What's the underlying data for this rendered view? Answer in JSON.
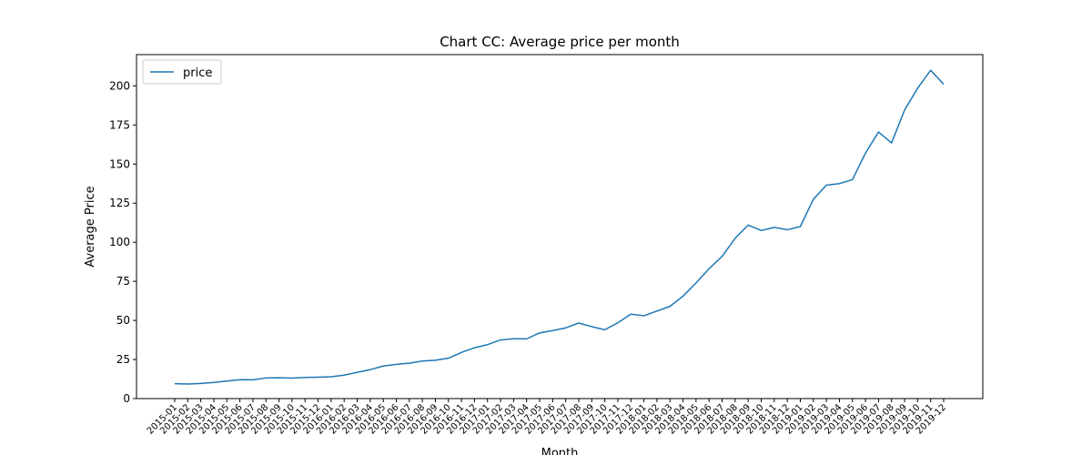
{
  "chart_data": {
    "type": "line",
    "title": "Chart CC: Average price per month",
    "xlabel": "Month",
    "ylabel": "Average Price",
    "ylim": [
      0,
      220
    ],
    "yticks": [
      0,
      25,
      50,
      75,
      100,
      125,
      150,
      175,
      200
    ],
    "grid": false,
    "legend_position": "top-left",
    "categories": [
      "2015-01",
      "2015-02",
      "2015-03",
      "2015-04",
      "2015-05",
      "2015-06",
      "2015-07",
      "2015-08",
      "2015-09",
      "2015-10",
      "2015-11",
      "2015-12",
      "2016-01",
      "2016-02",
      "2016-03",
      "2016-04",
      "2016-05",
      "2016-06",
      "2016-07",
      "2016-08",
      "2016-09",
      "2016-10",
      "2016-11",
      "2016-12",
      "2017-01",
      "2017-02",
      "2017-03",
      "2017-04",
      "2017-05",
      "2017-06",
      "2017-07",
      "2017-08",
      "2017-09",
      "2017-10",
      "2017-11",
      "2017-12",
      "2018-01",
      "2018-02",
      "2018-03",
      "2018-04",
      "2018-05",
      "2018-06",
      "2018-07",
      "2018-08",
      "2018-09",
      "2018-10",
      "2018-11",
      "2018-12",
      "2019-01",
      "2019-02",
      "2019-03",
      "2019-04",
      "2019-05",
      "2019-06",
      "2019-07",
      "2019-08",
      "2019-09",
      "2019-10",
      "2019-11",
      "2019-12"
    ],
    "series": [
      {
        "name": "price",
        "color": "#1f77b4",
        "values": [
          9.5,
          9.3,
          9.7,
          10.3,
          11.2,
          12.1,
          12.0,
          13.2,
          13.3,
          13.1,
          13.5,
          13.7,
          14.0,
          15.0,
          16.8,
          18.5,
          20.8,
          21.9,
          22.6,
          24.0,
          24.5,
          25.8,
          29.5,
          32.5,
          34.5,
          37.5,
          38.3,
          38.2,
          42.0,
          43.5,
          45.2,
          48.3,
          46.0,
          44.0,
          48.5,
          54.0,
          53.0,
          56.0,
          59.0,
          65.5,
          74.0,
          83.0,
          91.0,
          102.5,
          111.0,
          107.5,
          109.5,
          108.0,
          110.0,
          127.5,
          136.5,
          137.5,
          140.0,
          157.0,
          170.5,
          163.5,
          184.5,
          198.5,
          210.0,
          201.0
        ]
      }
    ]
  }
}
